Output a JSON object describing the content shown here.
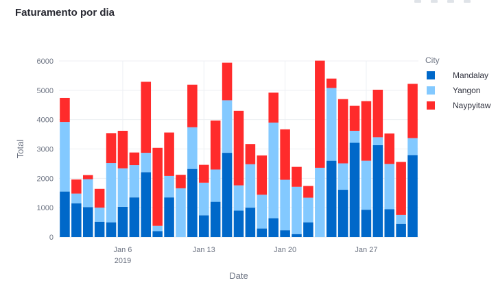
{
  "title": "Faturamento por dia",
  "chart_data": {
    "type": "bar",
    "stacked": true,
    "x": [
      "2019-01-01",
      "2019-01-02",
      "2019-01-03",
      "2019-01-04",
      "2019-01-05",
      "2019-01-06",
      "2019-01-07",
      "2019-01-08",
      "2019-01-09",
      "2019-01-10",
      "2019-01-11",
      "2019-01-12",
      "2019-01-13",
      "2019-01-14",
      "2019-01-15",
      "2019-01-16",
      "2019-01-17",
      "2019-01-18",
      "2019-01-19",
      "2019-01-20",
      "2019-01-21",
      "2019-01-22",
      "2019-01-23",
      "2019-01-24",
      "2019-01-25",
      "2019-01-26",
      "2019-01-27",
      "2019-01-28",
      "2019-01-29",
      "2019-01-30",
      "2019-01-31"
    ],
    "series": [
      {
        "name": "Mandalay",
        "color": "#0068c9",
        "values": [
          1550,
          1150,
          1020,
          520,
          500,
          1030,
          1350,
          2210,
          200,
          1350,
          0,
          2320,
          740,
          1200,
          2870,
          900,
          1000,
          290,
          640,
          230,
          100,
          500,
          0,
          2600,
          1610,
          3210,
          930,
          3130,
          950,
          450,
          2790
        ]
      },
      {
        "name": "Yangon",
        "color": "#83c9ff",
        "values": [
          2370,
          330,
          950,
          480,
          2020,
          1310,
          1100,
          660,
          180,
          730,
          1660,
          1420,
          1110,
          1100,
          1790,
          860,
          1480,
          1150,
          3260,
          1720,
          1610,
          840,
          2360,
          2480,
          900,
          410,
          1670,
          270,
          1540,
          300,
          580
        ]
      },
      {
        "name": "Naypyitaw",
        "color": "#ff2b2b",
        "values": [
          820,
          480,
          140,
          640,
          1020,
          1280,
          430,
          2420,
          2660,
          1480,
          460,
          1450,
          610,
          1670,
          1280,
          2540,
          690,
          1340,
          1020,
          1720,
          680,
          400,
          3650,
          320,
          2190,
          850,
          2030,
          1620,
          1040,
          1810,
          1850
        ]
      }
    ],
    "xlabel": "Date",
    "ylabel": "Total",
    "ylim": [
      0,
      6000
    ],
    "yticks": [
      0,
      1000,
      2000,
      3000,
      4000,
      5000,
      6000
    ],
    "xtick_labels": [
      {
        "date": "2019-01-06",
        "label": "Jan 6",
        "sub": "2019"
      },
      {
        "date": "2019-01-13",
        "label": "Jan 13"
      },
      {
        "date": "2019-01-20",
        "label": "Jan 20"
      },
      {
        "date": "2019-01-27",
        "label": "Jan 27"
      }
    ],
    "legend_title": "City",
    "legend_position": "right",
    "grid": true
  }
}
